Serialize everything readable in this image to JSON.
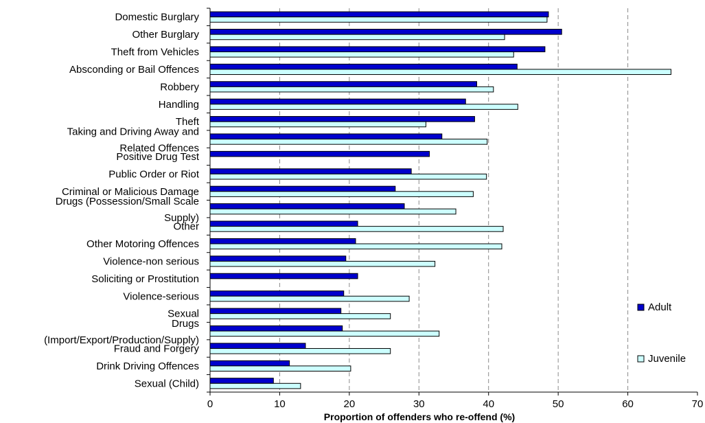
{
  "chart_data": {
    "type": "bar",
    "orientation": "horizontal",
    "xlabel": "Proportion of offenders who re-offend (%)",
    "ylabel": "",
    "xlim": [
      0,
      70
    ],
    "xticks": [
      0,
      10,
      20,
      30,
      40,
      50,
      60,
      70
    ],
    "grid": "vertical dashed",
    "legend_position": "right",
    "categories": [
      [
        "Domestic Burglary"
      ],
      [
        "Other Burglary"
      ],
      [
        "Theft from Vehicles"
      ],
      [
        "Absconding or Bail Offences"
      ],
      [
        "Robbery"
      ],
      [
        "Handling"
      ],
      [
        "Theft"
      ],
      [
        "Taking and Driving Away and",
        "Related Offences"
      ],
      [
        "Positive Drug Test"
      ],
      [
        "Public Order or Riot"
      ],
      [
        "Criminal or Malicious Damage"
      ],
      [
        "Drugs (Possession/Small Scale",
        "Supply)"
      ],
      [
        "Other"
      ],
      [
        "Other Motoring Offences"
      ],
      [
        "Violence-non serious"
      ],
      [
        "Soliciting or Prostitution"
      ],
      [
        "Violence-serious"
      ],
      [
        "Sexual"
      ],
      [
        "Drugs",
        "(Import/Export/Production/Supply)"
      ],
      [
        "Fraud and Forgery"
      ],
      [
        "Drink Driving Offences"
      ],
      [
        "Sexual (Child)"
      ]
    ],
    "series": [
      {
        "name": "Adult",
        "color": "#0000cc",
        "values": [
          48.6,
          50.5,
          48.1,
          44.1,
          38.3,
          36.7,
          38.0,
          33.3,
          31.5,
          28.9,
          26.6,
          27.9,
          21.2,
          20.9,
          19.5,
          21.2,
          19.2,
          18.8,
          19.0,
          13.7,
          11.4,
          9.1
        ]
      },
      {
        "name": "Juvenile",
        "color": "#ccffff",
        "values": [
          48.4,
          42.3,
          43.6,
          66.2,
          40.7,
          44.2,
          31.0,
          39.8,
          null,
          39.7,
          37.8,
          35.3,
          42.1,
          41.9,
          32.3,
          null,
          28.6,
          25.9,
          32.9,
          25.9,
          20.2,
          13.0
        ]
      }
    ]
  }
}
